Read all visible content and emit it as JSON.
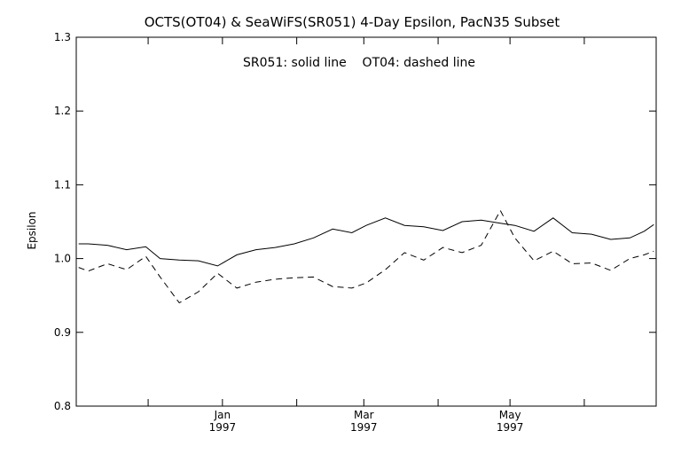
{
  "chart_data": {
    "type": "line",
    "title": "OCTS(OT04) & SeaWiFS(SR051) 4-Day Epsilon, PacN35 Subset",
    "annotation": "SR051: solid line    OT04: dashed line",
    "xlabel": "",
    "ylabel": "Epsilon",
    "ylim": [
      0.8,
      1.3
    ],
    "yticks": [
      "0.8",
      "0.9",
      "1.0",
      "1.1",
      "1.2",
      "1.3"
    ],
    "xlim": [
      "1996-11-01",
      "1997-06-30"
    ],
    "xticks": [
      {
        "date": "1996-11-01",
        "label": "",
        "year": ""
      },
      {
        "date": "1996-12-01",
        "label": "",
        "year": ""
      },
      {
        "date": "1997-01-01",
        "label": "Jan",
        "year": "1997"
      },
      {
        "date": "1997-02-01",
        "label": "",
        "year": ""
      },
      {
        "date": "1997-03-01",
        "label": "Mar",
        "year": "1997"
      },
      {
        "date": "1997-04-01",
        "label": "",
        "year": ""
      },
      {
        "date": "1997-05-01",
        "label": "May",
        "year": "1997"
      },
      {
        "date": "1997-06-01",
        "label": "",
        "year": ""
      }
    ],
    "grid": false,
    "series": [
      {
        "name": "SR051",
        "style": "solid",
        "color": "#000000",
        "x": [
          "1996-11-02",
          "1996-11-06",
          "1996-11-14",
          "1996-11-22",
          "1996-11-30",
          "1996-12-06",
          "1996-12-14",
          "1996-12-22",
          "1996-12-30",
          "1997-01-07",
          "1997-01-15",
          "1997-01-23",
          "1997-01-31",
          "1997-02-08",
          "1997-02-16",
          "1997-02-24",
          "1997-03-02",
          "1997-03-10",
          "1997-03-18",
          "1997-03-26",
          "1997-04-03",
          "1997-04-11",
          "1997-04-19",
          "1997-04-27",
          "1997-05-03",
          "1997-05-11",
          "1997-05-19",
          "1997-05-27",
          "1997-06-04",
          "1997-06-12",
          "1997-06-20",
          "1997-06-26",
          "1997-06-30"
        ],
        "y": [
          1.02,
          1.02,
          1.018,
          1.012,
          1.016,
          1.0,
          0.998,
          0.997,
          0.99,
          1.005,
          1.012,
          1.015,
          1.02,
          1.028,
          1.04,
          1.035,
          1.045,
          1.055,
          1.045,
          1.043,
          1.038,
          1.05,
          1.052,
          1.048,
          1.045,
          1.037,
          1.055,
          1.035,
          1.033,
          1.026,
          1.028,
          1.037,
          1.046
        ]
      },
      {
        "name": "OT04",
        "style": "dashed",
        "color": "#000000",
        "x": [
          "1996-11-02",
          "1996-11-06",
          "1996-11-14",
          "1996-11-22",
          "1996-11-30",
          "1996-12-06",
          "1996-12-14",
          "1996-12-22",
          "1996-12-30",
          "1997-01-07",
          "1997-01-15",
          "1997-01-23",
          "1997-01-31",
          "1997-02-08",
          "1997-02-16",
          "1997-02-24",
          "1997-03-02",
          "1997-03-10",
          "1997-03-18",
          "1997-03-26",
          "1997-04-03",
          "1997-04-11",
          "1997-04-19",
          "1997-04-27",
          "1997-05-03",
          "1997-05-11",
          "1997-05-19",
          "1997-05-27",
          "1997-06-04",
          "1997-06-12",
          "1997-06-20",
          "1997-06-26",
          "1997-06-30"
        ],
        "y": [
          0.988,
          0.983,
          0.993,
          0.985,
          1.003,
          0.975,
          0.94,
          0.955,
          0.98,
          0.96,
          0.968,
          0.972,
          0.974,
          0.975,
          0.962,
          0.96,
          0.967,
          0.985,
          1.008,
          0.998,
          1.015,
          1.008,
          1.018,
          1.065,
          1.028,
          0.997,
          1.01,
          0.993,
          0.994,
          0.984,
          1.0,
          1.005,
          1.01
        ]
      }
    ]
  }
}
